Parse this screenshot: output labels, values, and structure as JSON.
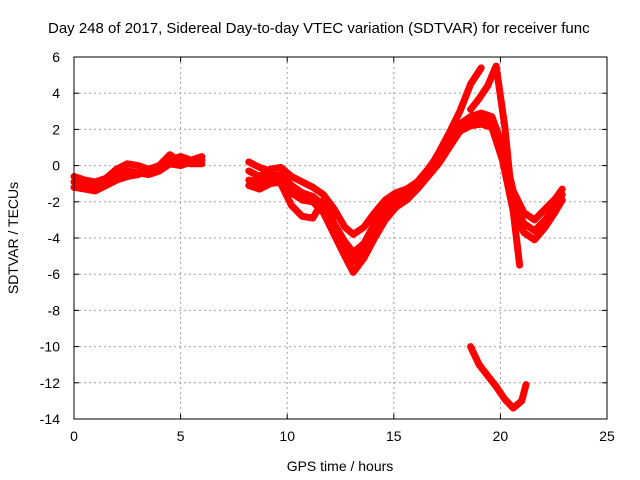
{
  "chart_data": {
    "type": "line",
    "title": "Day 248 of 2017, Sidereal Day-to-day VTEC variation (SDTVAR) for receiver func",
    "xlabel": "GPS time / hours",
    "ylabel": "SDTVAR / TECUs",
    "xlim": [
      0,
      25
    ],
    "ylim": [
      -14,
      6
    ],
    "xticks": [
      0,
      5,
      10,
      15,
      20,
      25
    ],
    "yticks": [
      -14,
      -12,
      -10,
      -8,
      -6,
      -4,
      -2,
      0,
      2,
      4,
      6
    ],
    "grid": true,
    "legend": "none",
    "color": "#ff0000",
    "marker": "plus",
    "series": [
      {
        "x": [
          0,
          0.5,
          1,
          1.5,
          2,
          2.5,
          3,
          3.5,
          4,
          4.5,
          5,
          5.5,
          6
        ],
        "y": [
          -0.9,
          -1.0,
          -1.2,
          -1.0,
          -0.6,
          -0.3,
          -0.4,
          -0.5,
          -0.3,
          0.1,
          0.0,
          0.2,
          0.3
        ]
      },
      {
        "x": [
          0,
          0.5,
          1,
          1.5,
          2,
          2.5,
          3,
          3.5,
          4,
          4.5,
          5,
          5.5,
          6
        ],
        "y": [
          -1.2,
          -1.3,
          -1.4,
          -1.1,
          -0.8,
          -0.6,
          -0.5,
          -0.3,
          -0.1,
          0.3,
          0.5,
          0.3,
          0.5
        ]
      },
      {
        "x": [
          0,
          0.5,
          1,
          1.5,
          2,
          2.5,
          3,
          3.5,
          4,
          4.5,
          5,
          5.5,
          6
        ],
        "y": [
          -0.6,
          -0.8,
          -0.9,
          -0.7,
          -0.2,
          0.1,
          0.0,
          -0.2,
          0.0,
          0.6,
          0.2,
          0.1,
          0.1
        ]
      },
      {
        "x": [
          8.2,
          8.7,
          9.2,
          9.7,
          10.2,
          10.7,
          11.2,
          11.7,
          12.2,
          12.7,
          13.1,
          13.6,
          14.1,
          14.6,
          15.1,
          15.6,
          16.1,
          16.6,
          17.1,
          17.6,
          18.1,
          18.6,
          19.1,
          19.6,
          20.1,
          20.6,
          21.1,
          21.6,
          22.1,
          22.6,
          22.9
        ],
        "y": [
          -0.3,
          -0.6,
          -0.2,
          -0.1,
          -0.6,
          -0.9,
          -1.2,
          -1.6,
          -2.4,
          -3.4,
          -3.8,
          -3.4,
          -2.6,
          -1.9,
          -1.5,
          -1.3,
          -0.9,
          -0.2,
          0.6,
          1.5,
          2.3,
          2.7,
          2.9,
          2.7,
          1.1,
          -1.4,
          -2.6,
          -3.0,
          -2.4,
          -1.8,
          -1.3
        ]
      },
      {
        "x": [
          8.2,
          8.7,
          9.2,
          9.7,
          10.2,
          10.7,
          11.2,
          11.7,
          12.2,
          12.7,
          13.1,
          13.6,
          14.1,
          14.6,
          15.1,
          15.6,
          16.1,
          16.6,
          17.1,
          17.6,
          18.1,
          18.6,
          19.1,
          19.6,
          20.1,
          20.6,
          21.1,
          21.6,
          22.1,
          22.6,
          22.9
        ],
        "y": [
          -0.8,
          -0.9,
          -0.6,
          -0.5,
          -1.1,
          -1.5,
          -1.7,
          -2.2,
          -3.3,
          -4.5,
          -5.3,
          -4.6,
          -3.6,
          -2.7,
          -2.1,
          -1.7,
          -1.1,
          -0.4,
          0.3,
          1.2,
          2.1,
          2.4,
          2.6,
          2.4,
          0.6,
          -2.0,
          -3.2,
          -3.6,
          -3.0,
          -2.2,
          -1.6
        ]
      },
      {
        "x": [
          8.2,
          8.7,
          9.2,
          9.7,
          10.2,
          10.7,
          11.2,
          11.7,
          12.2,
          12.7,
          13.1,
          13.6,
          14.1,
          14.6,
          15.1,
          15.6,
          16.1,
          16.6,
          17.1,
          17.6,
          18.1,
          18.6,
          19.1,
          19.6,
          20.1,
          20.6,
          21.1,
          21.6,
          22.1,
          22.6,
          22.9
        ],
        "y": [
          -1.1,
          -1.3,
          -1.0,
          -0.9,
          -1.5,
          -1.9,
          -2.0,
          -2.6,
          -3.8,
          -5.0,
          -5.9,
          -5.1,
          -4.0,
          -3.0,
          -2.3,
          -1.9,
          -1.3,
          -0.6,
          0.1,
          1.0,
          1.9,
          2.2,
          2.3,
          2.1,
          0.3,
          -2.5,
          -3.7,
          -4.1,
          -3.4,
          -2.5,
          -1.9
        ]
      },
      {
        "x": [
          8.2,
          8.7,
          9.2,
          9.7,
          10.2,
          10.7,
          11.2,
          11.7,
          12.2,
          12.7,
          13.1,
          13.6,
          14.1,
          14.6,
          15.1,
          15.6,
          16.1,
          16.6,
          17.1,
          17.6,
          18.1,
          18.6,
          19.1
        ],
        "y": [
          0.2,
          -0.1,
          -0.3,
          -1.0,
          -2.2,
          -2.8,
          -2.9,
          -1.9,
          -3.2,
          -4.2,
          -4.8,
          -4.3,
          -3.2,
          -2.4,
          -1.9,
          -1.5,
          -1.0,
          -0.3,
          0.7,
          1.8,
          3.0,
          4.5,
          5.4
        ]
      },
      {
        "x": [
          18.6,
          19.0,
          19.4,
          19.8,
          20.2,
          20.6,
          20.9
        ],
        "y": [
          3.1,
          3.7,
          4.4,
          5.5,
          2.2,
          -2.5,
          -5.5
        ]
      },
      {
        "x": [
          18.6,
          19.0,
          19.4,
          19.8,
          20.2,
          20.6,
          21.0,
          21.2
        ],
        "y": [
          -10.0,
          -11.0,
          -11.6,
          -12.2,
          -12.9,
          -13.4,
          -13.0,
          -12.1
        ]
      }
    ]
  }
}
